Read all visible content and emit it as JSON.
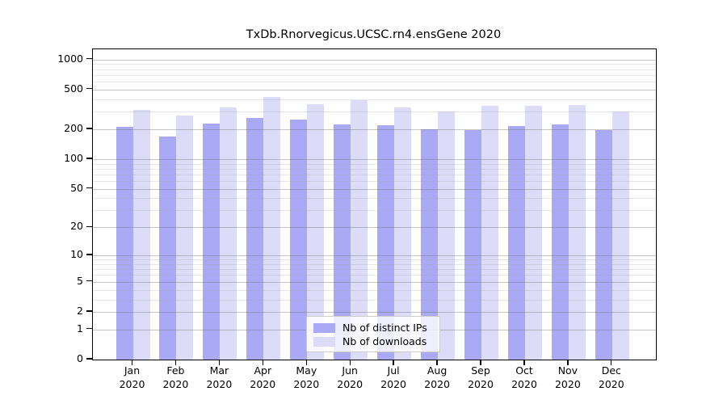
{
  "title": "TxDb.Rnorvegicus.UCSC.rn4.ensGene 2020",
  "chart_data": {
    "type": "bar",
    "title": "TxDb.Rnorvegicus.UCSC.rn4.ensGene 2020",
    "categories": [
      "Jan",
      "Feb",
      "Mar",
      "Apr",
      "May",
      "Jun",
      "Jul",
      "Aug",
      "Sep",
      "Oct",
      "Nov",
      "Dec"
    ],
    "category_year": "2020",
    "series": [
      {
        "name": "Nb of distinct IPs",
        "color": "#a9a9f5",
        "values": [
          212,
          170,
          226,
          258,
          249,
          222,
          218,
          200,
          197,
          216,
          225,
          196
        ]
      },
      {
        "name": "Nb of downloads",
        "color": "#dcdcf8",
        "values": [
          310,
          276,
          328,
          425,
          358,
          388,
          333,
          299,
          345,
          344,
          352,
          300
        ]
      }
    ],
    "xlabel": "",
    "ylabel": "",
    "y_scale": "log1p",
    "y_ticks": [
      0,
      1,
      2,
      5,
      10,
      20,
      50,
      100,
      200,
      500,
      1000
    ],
    "y_minor_ticks": [
      3,
      4,
      6,
      7,
      8,
      9,
      30,
      40,
      60,
      70,
      80,
      90,
      300,
      400,
      600,
      700,
      800,
      900
    ],
    "ylim": [
      0,
      1250
    ],
    "grid": "on",
    "legend_position": "inside-bottom-center"
  },
  "legend": {
    "items": [
      {
        "label": "Nb of distinct IPs",
        "color": "#a9a9f5"
      },
      {
        "label": "Nb of downloads",
        "color": "#dcdcf8"
      }
    ]
  }
}
